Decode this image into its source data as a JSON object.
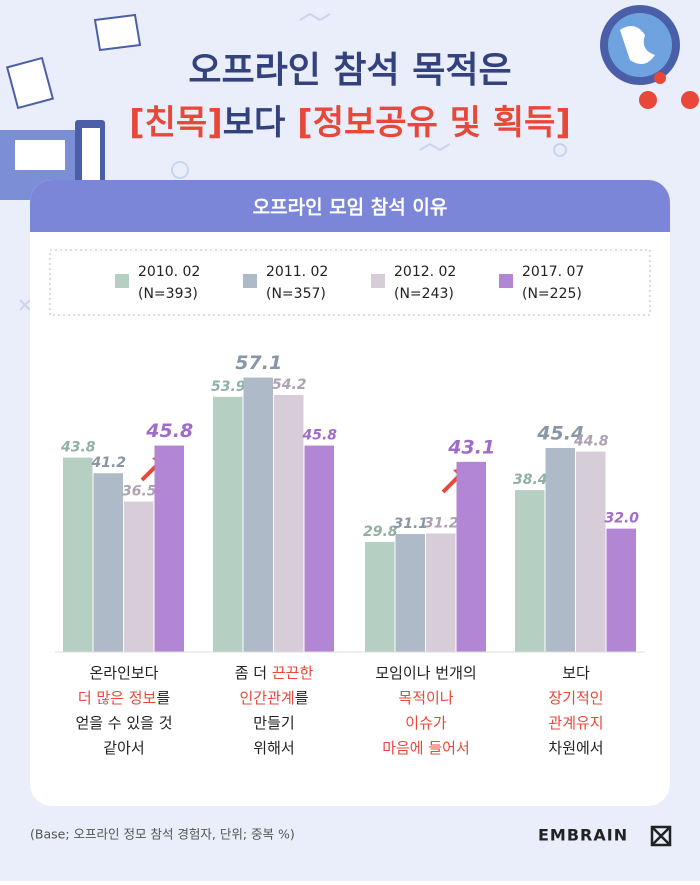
{
  "chart_data": {
    "type": "bar",
    "title_line1": "오프라인 참석 목적은",
    "title_line2": [
      {
        "text": "[친목]",
        "highlight": true
      },
      {
        "text": "보다 ",
        "highlight": false
      },
      {
        "text": "[정보공유 및 획득]",
        "highlight": true
      }
    ],
    "subtitle": "오프라인 모임 참석 이유",
    "category_lines": [
      [
        [
          {
            "text": "온라인보다",
            "highlight": false
          }
        ],
        [
          {
            "text": "더 많은 정보",
            "highlight": true
          },
          {
            "text": "를",
            "highlight": false
          }
        ],
        [
          {
            "text": "얻을 수 있을 것",
            "highlight": false
          }
        ],
        [
          {
            "text": "같아서",
            "highlight": false
          }
        ]
      ],
      [
        [
          {
            "text": "좀 더 ",
            "highlight": false
          },
          {
            "text": "끈끈한",
            "highlight": true
          }
        ],
        [
          {
            "text": "인간관계",
            "highlight": true
          },
          {
            "text": "를",
            "highlight": false
          }
        ],
        [
          {
            "text": "만들기",
            "highlight": false
          }
        ],
        [
          {
            "text": "위해서",
            "highlight": false
          }
        ]
      ],
      [
        [
          {
            "text": "모임이나 번개의",
            "highlight": false
          }
        ],
        [
          {
            "text": "목적이나",
            "highlight": true
          }
        ],
        [
          {
            "text": "이슈가",
            "highlight": true
          }
        ],
        [
          {
            "text": "마음에 들어서",
            "highlight": true
          }
        ]
      ],
      [
        [
          {
            "text": "보다",
            "highlight": false
          }
        ],
        [
          {
            "text": "장기적인",
            "highlight": true
          }
        ],
        [
          {
            "text": "관계유지",
            "highlight": true
          }
        ],
        [
          {
            "text": "차원에서",
            "highlight": false
          }
        ]
      ]
    ],
    "series": [
      {
        "name": "2010. 02",
        "sample": "(N=393)",
        "color": "#b5cfc3",
        "label_color": "#8fb0a2",
        "values": [
          43.8,
          53.9,
          29.8,
          38.4
        ]
      },
      {
        "name": "2011. 02",
        "sample": "(N=357)",
        "color": "#aebac7",
        "label_color": "#8896a5",
        "values": [
          41.2,
          57.1,
          31.1,
          45.4
        ]
      },
      {
        "name": "2012. 02",
        "sample": "(N=243)",
        "color": "#d6cdd9",
        "label_color": "#ada1b2",
        "values": [
          36.5,
          54.2,
          31.2,
          44.8
        ]
      },
      {
        "name": "2017. 07",
        "sample": "(N=225)",
        "color": "#b286d4",
        "label_color": "#a06ccb",
        "values": [
          45.8,
          45.8,
          43.1,
          32
        ],
        "value_labels": [
          "45.8",
          "45.8",
          "43.1",
          "32.0"
        ]
      }
    ],
    "ylim": [
      11.5,
      65
    ],
    "footnote": "(Base; 오프라인 정모 참석 경험자, 단위; 중복 %)",
    "brand": "EMBRAIN"
  }
}
